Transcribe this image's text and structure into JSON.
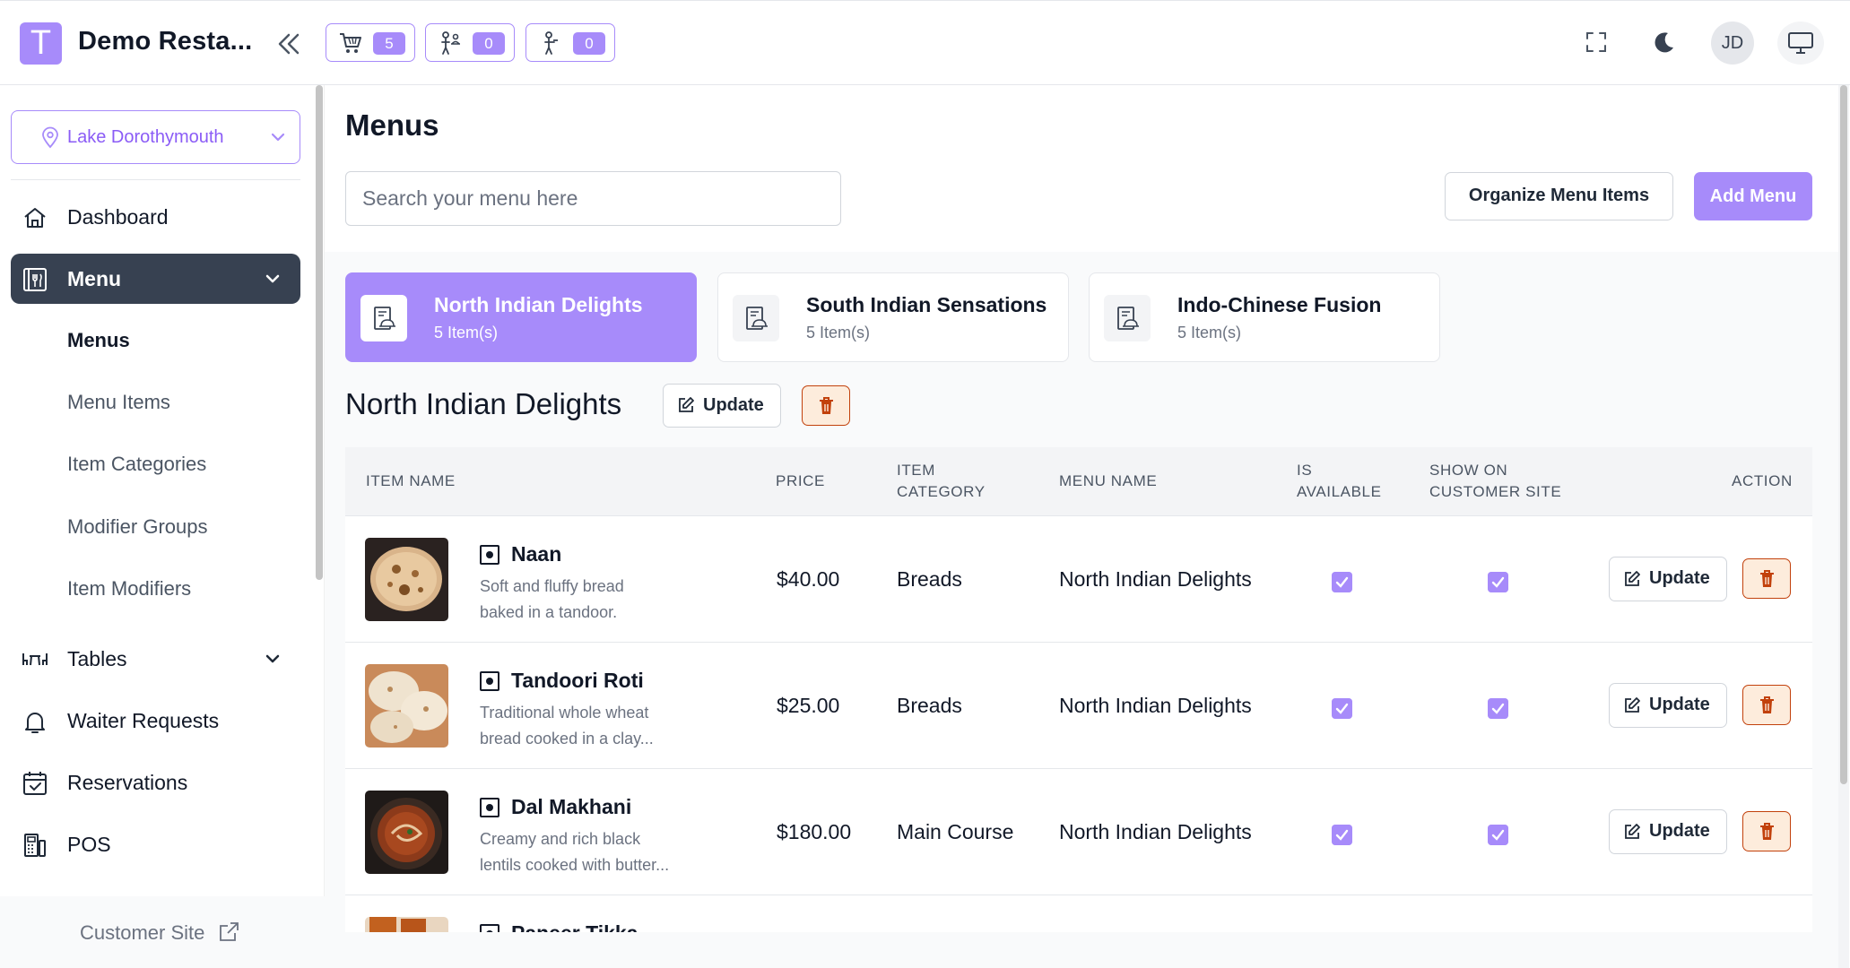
{
  "header": {
    "logo_letter": "T",
    "app_title": "Demo Resta...",
    "counters": [
      {
        "icon": "cart-icon",
        "count": "5"
      },
      {
        "icon": "waiter-request-icon",
        "count": "0"
      },
      {
        "icon": "waiter-icon",
        "count": "0"
      }
    ],
    "avatar_initials": "JD"
  },
  "sidebar": {
    "location": "Lake Dorothymouth",
    "nav": [
      {
        "label": "Dashboard",
        "icon": "home-icon"
      },
      {
        "label": "Menu",
        "icon": "menu-book-icon",
        "expanded": true
      },
      {
        "label": "Tables",
        "icon": "table-icon"
      },
      {
        "label": "Waiter Requests",
        "icon": "bell-icon"
      },
      {
        "label": "Reservations",
        "icon": "calendar-check-icon"
      },
      {
        "label": "POS",
        "icon": "pos-icon"
      }
    ],
    "menu_sub_items": [
      "Menus",
      "Menu Items",
      "Item Categories",
      "Modifier Groups",
      "Item Modifiers"
    ],
    "customer_site": "Customer Site"
  },
  "main": {
    "title": "Menus",
    "search_placeholder": "Search your menu here",
    "organize_label": "Organize Menu Items",
    "add_menu_label": "Add Menu",
    "menus": [
      {
        "name": "North Indian Delights",
        "count": "5 Item(s)",
        "active": true
      },
      {
        "name": "South Indian Sensations",
        "count": "5 Item(s)",
        "active": false
      },
      {
        "name": "Indo-Chinese Fusion",
        "count": "5 Item(s)",
        "active": false
      }
    ],
    "selected_menu": "North Indian Delights",
    "update_label": "Update",
    "table": {
      "headers": {
        "item_name": "ITEM NAME",
        "price": "PRICE",
        "item_category": [
          "ITEM",
          "CATEGORY"
        ],
        "menu_name": "MENU NAME",
        "is_available": [
          "IS",
          "AVAILABLE"
        ],
        "show_on_site": [
          "SHOW ON",
          "CUSTOMER SITE"
        ],
        "action": "ACTION"
      },
      "rows": [
        {
          "name": "Naan",
          "desc": [
            "Soft and fluffy bread",
            "baked in a tandoor."
          ],
          "price": "$40.00",
          "category": "Breads",
          "menu": "North Indian Delights",
          "available": true,
          "show": true
        },
        {
          "name": "Tandoori Roti",
          "desc": [
            "Traditional whole wheat",
            "bread cooked in a clay..."
          ],
          "price": "$25.00",
          "category": "Breads",
          "menu": "North Indian Delights",
          "available": true,
          "show": true
        },
        {
          "name": "Dal Makhani",
          "desc": [
            "Creamy and rich black",
            "lentils cooked with butter..."
          ],
          "price": "$180.00",
          "category": "Main Course",
          "menu": "North Indian Delights",
          "available": true,
          "show": true
        },
        {
          "name": "Paneer Tikka",
          "desc": [
            "",
            ""
          ],
          "price": "",
          "category": "",
          "menu": "",
          "available": true,
          "show": true
        }
      ],
      "row_update_label": "Update"
    }
  },
  "colors": {
    "accent": "#a78bfa",
    "active_nav": "#374151",
    "danger": "#c2410c",
    "danger_bg": "#fdecdc"
  }
}
